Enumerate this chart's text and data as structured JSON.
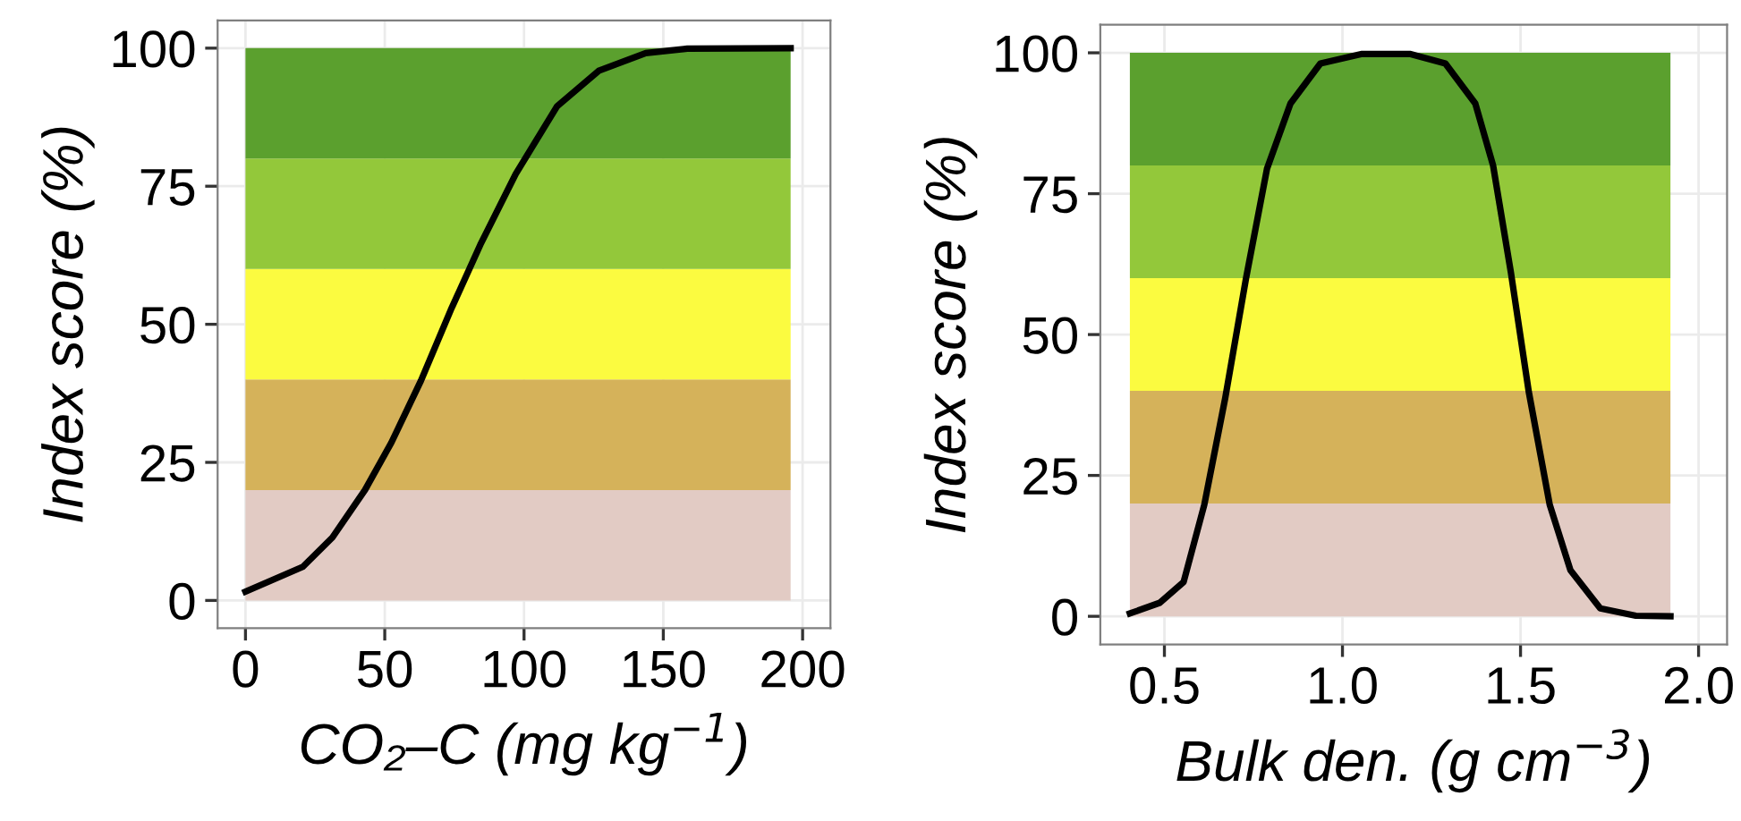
{
  "chart_data": [
    {
      "type": "line",
      "xlabel": "CO₂–C (mg kg$^{−1}$)",
      "ylabel": "Index score (%)",
      "xlim": [
        -10,
        210
      ],
      "ylim": [
        -5,
        105
      ],
      "xticks": [
        0,
        50,
        100,
        150,
        200
      ],
      "yticks": [
        0,
        25,
        50,
        75,
        100
      ],
      "grid": true,
      "bands": [
        {
          "axis": "y",
          "from": 0,
          "to": 20,
          "color": "#e2cbc4"
        },
        {
          "axis": "y",
          "from": 20,
          "to": 40,
          "color": "#d5b25a"
        },
        {
          "axis": "y",
          "from": 40,
          "to": 60,
          "color": "#fbfb40"
        },
        {
          "axis": "y",
          "from": 60,
          "to": 80,
          "color": "#93c83a"
        },
        {
          "axis": "y",
          "from": 80,
          "to": 100,
          "color": "#5ba02e"
        }
      ],
      "series": [
        {
          "color": "#000000",
          "x": [
            0,
            20.6,
            31.2,
            42.9,
            52.4,
            63,
            73.7,
            84.3,
            97,
            111.9,
            126.8,
            143.7,
            158.6,
            195.7
          ],
          "values": [
            1.6,
            6.1,
            11.4,
            20,
            28.6,
            39.8,
            52.6,
            64.4,
            77.2,
            89.5,
            95.9,
            99.1,
            99.9,
            100
          ]
        }
      ]
    },
    {
      "type": "line",
      "xlabel": "Bulk den. (g cm$^{−3}$)",
      "ylabel": "Index score (%)",
      "xlim": [
        0.32,
        2.08
      ],
      "ylim": [
        -5,
        105
      ],
      "xticks": [
        {
          "value": 0.5,
          "label": "0.5"
        },
        {
          "value": 1.0,
          "label": "1.0"
        },
        {
          "value": 1.5,
          "label": "1.5"
        },
        {
          "value": 2.0,
          "label": "2.0"
        }
      ],
      "yticks": [
        0,
        25,
        50,
        75,
        100
      ],
      "grid": true,
      "bands": [
        {
          "axis": "y",
          "from": 0,
          "to": 20,
          "color": "#e2cbc4"
        },
        {
          "axis": "y",
          "from": 20,
          "to": 40,
          "color": "#d5b25a"
        },
        {
          "axis": "y",
          "from": 40,
          "to": 60,
          "color": "#fbfb40"
        },
        {
          "axis": "y",
          "from": 60,
          "to": 80,
          "color": "#93c83a"
        },
        {
          "axis": "y",
          "from": 80,
          "to": 100,
          "color": "#5ba02e"
        }
      ],
      "series": [
        {
          "color": "#000000",
          "x": [
            0.403,
            0.487,
            0.554,
            0.612,
            0.671,
            0.729,
            0.788,
            0.854,
            0.938,
            1.055,
            1.189,
            1.289,
            1.373,
            1.423,
            1.473,
            1.523,
            1.582,
            1.64,
            1.724,
            1.824,
            1.921
          ],
          "values": [
            0.5,
            2.4,
            6.1,
            19.8,
            38.8,
            59.9,
            79.4,
            91,
            98.1,
            99.8,
            99.8,
            98.1,
            91,
            80,
            61,
            39.9,
            19.8,
            8.2,
            1.4,
            0.1,
            0
          ]
        }
      ]
    }
  ]
}
